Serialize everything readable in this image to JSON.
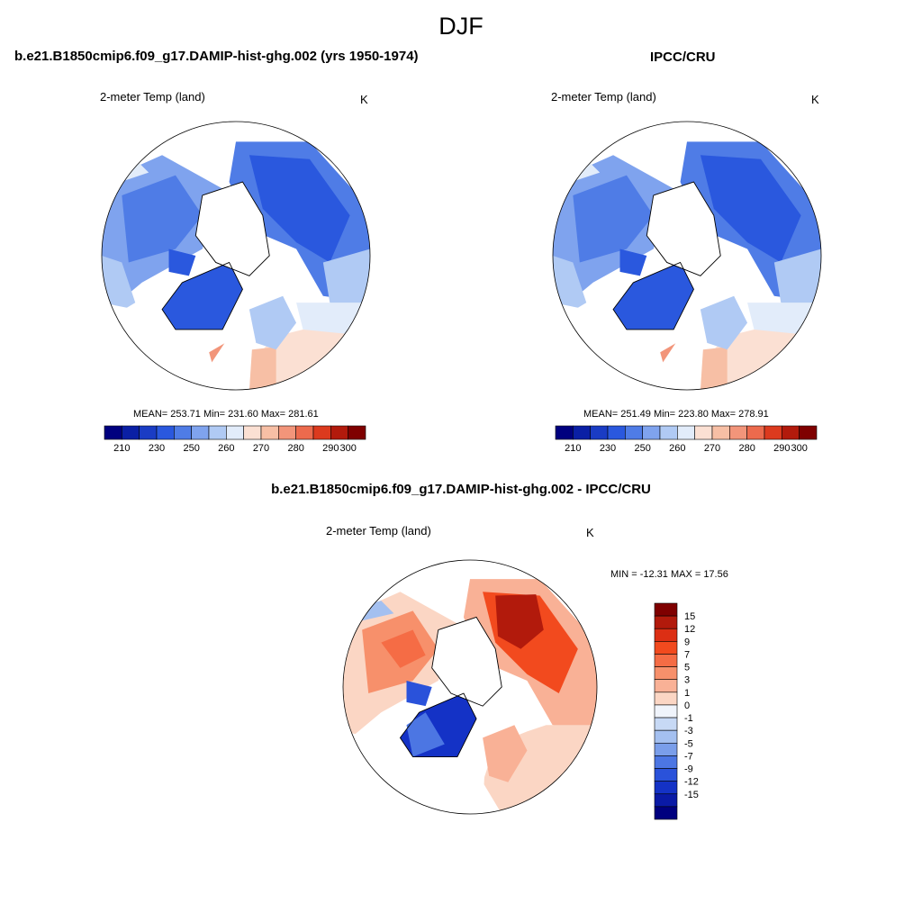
{
  "figure_title": "DJF",
  "panels": [
    {
      "title": "b.e21.B1850cmip6.f09_g17.DAMIP-hist-ghg.002 (yrs 1950-1974)",
      "variable": "2-meter Temp (land)",
      "units": "K",
      "stats": "MEAN= 253.71  Min= 231.60  Max= 281.61"
    },
    {
      "title": "IPCC/CRU",
      "variable": "2-meter Temp (land)",
      "units": "K",
      "stats": "MEAN= 251.49  Min= 223.80  Max= 278.91"
    },
    {
      "title": "b.e21.B1850cmip6.f09_g17.DAMIP-hist-ghg.002 - IPCC/CRU",
      "variable": "2-meter Temp (land)",
      "units": "K",
      "stats": "MIN = -12.31 MAX =  17.56"
    }
  ],
  "colors": {
    "abs_scale": [
      "#00007f",
      "#0a1fa5",
      "#1a3cc4",
      "#2a58de",
      "#4f7ce6",
      "#7fa3ee",
      "#b0caf4",
      "#e2ecfa",
      "#fbe0d3",
      "#f7bfa5",
      "#f2957a",
      "#ec6a4d",
      "#dc3a1e",
      "#b21a0c",
      "#7f0000"
    ],
    "diff_scale": [
      "#7f0000",
      "#b21a0c",
      "#dc2f14",
      "#f24a1e",
      "#f56c45",
      "#f7906b",
      "#f9b196",
      "#fbd6c4",
      "#f0f4fb",
      "#c7d9f5",
      "#a4c0f0",
      "#7a9eea",
      "#4c76e3",
      "#2a52da",
      "#1432c6",
      "#0a1aa6",
      "#00007f"
    ]
  },
  "chart_data": [
    {
      "type": "heatmap",
      "projection": "north-polar-stereographic",
      "title": "b.e21.B1850cmip6.f09_g17.DAMIP-hist-ghg.002 (yrs 1950-1974)",
      "variable": "2-meter Temp (land)",
      "units": "K",
      "mean": 253.71,
      "min": 231.6,
      "max": 281.61,
      "colorbar_ticks": [
        "210",
        "230",
        "250",
        "260",
        "270",
        "280",
        "290",
        "300"
      ]
    },
    {
      "type": "heatmap",
      "projection": "north-polar-stereographic",
      "title": "IPCC/CRU",
      "variable": "2-meter Temp (land)",
      "units": "K",
      "mean": 251.49,
      "min": 223.8,
      "max": 278.91,
      "colorbar_ticks": [
        "210",
        "230",
        "250",
        "260",
        "270",
        "280",
        "290",
        "300"
      ]
    },
    {
      "type": "heatmap",
      "projection": "north-polar-stereographic",
      "title": "b.e21.B1850cmip6.f09_g17.DAMIP-hist-ghg.002 - IPCC/CRU",
      "variable": "2-meter Temp (land)",
      "units": "K",
      "min": -12.31,
      "max": 17.56,
      "colorbar_ticks": [
        "15",
        "12",
        "9",
        "7",
        "5",
        "3",
        "1",
        "0",
        "-1",
        "-3",
        "-5",
        "-7",
        "-9",
        "-12",
        "-15"
      ]
    }
  ]
}
